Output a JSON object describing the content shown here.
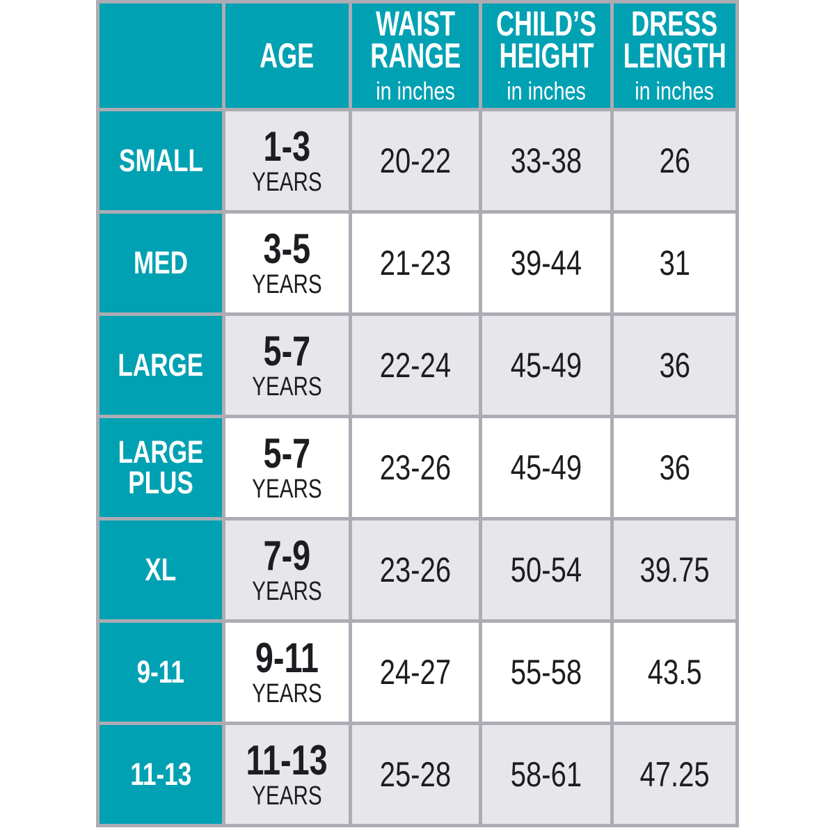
{
  "chart_data": {
    "type": "table",
    "columns": [
      {
        "line1": "",
        "line2": "",
        "sub": ""
      },
      {
        "line1": "AGE",
        "line2": "",
        "sub": ""
      },
      {
        "line1": "WAIST",
        "line2": "RANGE",
        "sub": "in inches"
      },
      {
        "line1": "CHILD’S",
        "line2": "HEIGHT",
        "sub": "in inches"
      },
      {
        "line1": "DRESS",
        "line2": "LENGTH",
        "sub": "in inches"
      }
    ],
    "rows": [
      {
        "size": "SMALL",
        "age": "1-3",
        "age_unit": "YEARS",
        "waist": "20-22",
        "child_height": "33-38",
        "dress_length": "26"
      },
      {
        "size": "MED",
        "age": "3-5",
        "age_unit": "YEARS",
        "waist": "21-23",
        "child_height": "39-44",
        "dress_length": "31"
      },
      {
        "size": "LARGE",
        "age": "5-7",
        "age_unit": "YEARS",
        "waist": "22-24",
        "child_height": "45-49",
        "dress_length": "36"
      },
      {
        "size": "LARGE PLUS",
        "age": "5-7",
        "age_unit": "YEARS",
        "waist": "23-26",
        "child_height": "45-49",
        "dress_length": "36"
      },
      {
        "size": "XL",
        "age": "7-9",
        "age_unit": "YEARS",
        "waist": "23-26",
        "child_height": "50-54",
        "dress_length": "39.75"
      },
      {
        "size": "9-11",
        "age": "9-11",
        "age_unit": "YEARS",
        "waist": "24-27",
        "child_height": "55-58",
        "dress_length": "43.5"
      },
      {
        "size": "11-13",
        "age": "11-13",
        "age_unit": "YEARS",
        "waist": "25-28",
        "child_height": "58-61",
        "dress_length": "47.25"
      }
    ]
  },
  "colors": {
    "teal": "#00a1b3",
    "border": "#adacb4",
    "row_white": "#ffffff",
    "row_shaded": "#e7e6eb",
    "header_text": "#ffffff",
    "cell_text": "#1d1c20",
    "page_bg": "#ffffff"
  }
}
